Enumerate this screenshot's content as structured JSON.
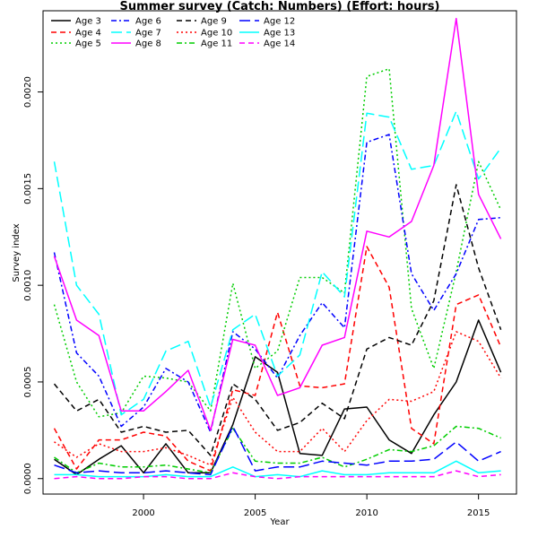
{
  "chart_data": {
    "type": "line",
    "title": "Summer survey (Catch: Numbers) (Effort: hours)",
    "xlabel": "Year",
    "ylabel": "Survey index",
    "xlim": [
      1995.5,
      2016.7
    ],
    "ylim": [
      -8e-05,
      0.00242
    ],
    "x_ticks": [
      2000,
      2005,
      2010,
      2015
    ],
    "x_tick_labels": [
      "2000",
      "2005",
      "2010",
      "2015"
    ],
    "y_ticks": [
      0,
      0.0005,
      0.001,
      0.0015,
      0.002
    ],
    "y_tick_labels": [
      "0.0000",
      "0.0005",
      "0.0010",
      "0.0015",
      "0.0020"
    ],
    "grid": false,
    "legend_position": "top-left",
    "x": [
      1996,
      1997,
      1998,
      1999,
      2000,
      2001,
      2002,
      2003,
      2004,
      2005,
      2006,
      2007,
      2008,
      2009,
      2010,
      2011,
      2012,
      2013,
      2014,
      2015,
      2016
    ],
    "series": [
      {
        "name": "Age 3",
        "color": "#000000",
        "dash": "solid",
        "values": [
          0.0001,
          2e-05,
          0.0001,
          0.00017,
          3e-05,
          0.00018,
          3e-05,
          3e-05,
          0.00028,
          0.00063,
          0.00055,
          0.00013,
          0.00012,
          0.00036,
          0.00037,
          0.0002,
          0.00013,
          0.00033,
          0.0005,
          0.00082,
          0.00055
        ]
      },
      {
        "name": "Age 4",
        "color": "#ff0000",
        "dash": "dashed",
        "values": [
          0.00026,
          5e-05,
          0.0002,
          0.0002,
          0.00024,
          0.00022,
          9e-05,
          4e-05,
          0.00046,
          0.00043,
          0.00086,
          0.00048,
          0.00047,
          0.00049,
          0.0012,
          0.00099,
          0.00026,
          0.00018,
          0.0009,
          0.00095,
          0.00068
        ]
      },
      {
        "name": "Age 5",
        "color": "#00cd00",
        "dash": "dotted",
        "values": [
          0.0009,
          0.0005,
          0.00032,
          0.00034,
          0.00053,
          0.00052,
          0.0005,
          0.00035,
          0.00101,
          0.00057,
          0.00066,
          0.00104,
          0.00104,
          0.00096,
          0.00208,
          0.00212,
          0.00088,
          0.00057,
          0.00107,
          0.00164,
          0.00139
        ]
      },
      {
        "name": "Age 6",
        "color": "#0000ff",
        "dash": "dashdot",
        "values": [
          0.00117,
          0.00065,
          0.00053,
          0.00027,
          0.00037,
          0.00057,
          0.0005,
          0.00024,
          0.00076,
          0.00067,
          0.00052,
          0.00074,
          0.00091,
          0.00078,
          0.00174,
          0.00178,
          0.00106,
          0.00087,
          0.00106,
          0.00134,
          0.00135
        ]
      },
      {
        "name": "Age 7",
        "color": "#00ffff",
        "dash": "longdash",
        "values": [
          0.00164,
          0.001,
          0.00085,
          0.00033,
          0.00041,
          0.00066,
          0.00071,
          0.00037,
          0.00077,
          0.00085,
          0.00053,
          0.00064,
          0.00107,
          0.00094,
          0.00189,
          0.00187,
          0.0016,
          0.00162,
          0.0019,
          0.00155,
          0.00171
        ]
      },
      {
        "name": "Age 8",
        "color": "#ff00ff",
        "dash": "solid",
        "values": [
          0.00115,
          0.00082,
          0.00074,
          0.00035,
          0.00035,
          0.00045,
          0.00056,
          0.00025,
          0.00072,
          0.00069,
          0.00043,
          0.00047,
          0.00069,
          0.00073,
          0.00128,
          0.00125,
          0.00133,
          0.00162,
          0.00238,
          0.00147,
          0.00124
        ]
      },
      {
        "name": "Age 9",
        "color": "#000000",
        "dash": "dashed",
        "values": [
          0.00049,
          0.00035,
          0.00041,
          0.00024,
          0.00027,
          0.00024,
          0.00025,
          0.00012,
          0.00049,
          0.00041,
          0.00025,
          0.00029,
          0.00039,
          0.00031,
          0.00067,
          0.00073,
          0.00069,
          0.00092,
          0.00152,
          0.00109,
          0.00077
        ]
      },
      {
        "name": "Age 10",
        "color": "#ff0000",
        "dash": "dotted",
        "values": [
          0.00019,
          0.00011,
          0.00018,
          0.00014,
          0.00014,
          0.00016,
          0.00012,
          7e-05,
          0.00042,
          0.00024,
          0.00014,
          0.00014,
          0.00026,
          0.00014,
          0.0003,
          0.00041,
          0.0004,
          0.00045,
          0.00076,
          0.00071,
          0.00052
        ]
      },
      {
        "name": "Age 11",
        "color": "#00cd00",
        "dash": "dashdot",
        "values": [
          0.00011,
          3e-05,
          8e-05,
          6e-05,
          6e-05,
          7e-05,
          5e-05,
          3e-05,
          0.00026,
          9e-05,
          8e-05,
          8e-05,
          0.00011,
          6e-05,
          0.0001,
          0.00015,
          0.00014,
          0.00017,
          0.00027,
          0.00026,
          0.00021
        ]
      },
      {
        "name": "Age 12",
        "color": "#0000ff",
        "dash": "longdash",
        "values": [
          7e-05,
          3e-05,
          4e-05,
          3e-05,
          3e-05,
          4e-05,
          3e-05,
          2e-05,
          0.00027,
          4e-05,
          6e-05,
          6e-05,
          9e-05,
          8e-05,
          7e-05,
          9e-05,
          9e-05,
          0.0001,
          0.00019,
          9e-05,
          0.00014
        ]
      },
      {
        "name": "Age 13",
        "color": "#00ffff",
        "dash": "solid",
        "values": [
          2e-05,
          2e-05,
          1e-05,
          1e-05,
          1e-05,
          2e-05,
          1e-05,
          1e-05,
          6e-05,
          1e-05,
          2e-05,
          1e-05,
          4e-05,
          2e-05,
          2e-05,
          3e-05,
          3e-05,
          3e-05,
          9e-05,
          3e-05,
          4e-05
        ]
      },
      {
        "name": "Age 14",
        "color": "#ff00ff",
        "dash": "dashed",
        "values": [
          0.0,
          1e-05,
          0.0,
          0.0,
          1e-05,
          1e-05,
          0.0,
          0.0,
          3e-05,
          1e-05,
          0.0,
          1e-05,
          1e-05,
          1e-05,
          1e-05,
          1e-05,
          1e-05,
          1e-05,
          4e-05,
          1e-05,
          2e-05
        ]
      }
    ]
  }
}
